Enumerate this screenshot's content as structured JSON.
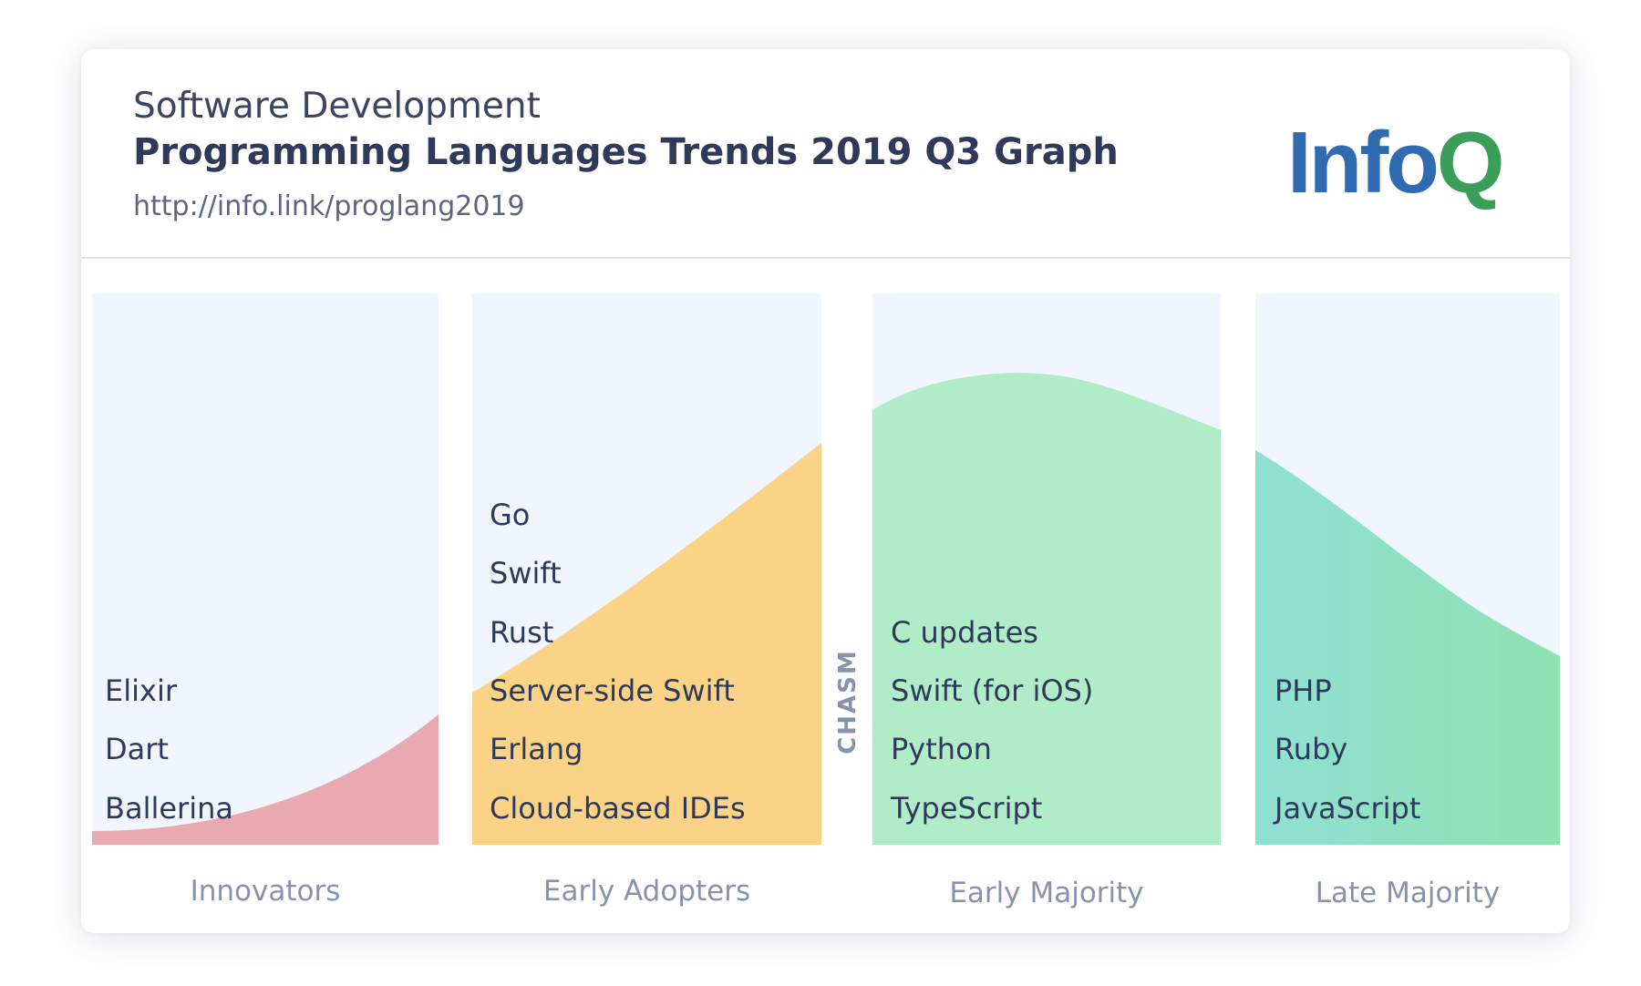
{
  "header": {
    "subtitle": "Software Development",
    "title": "Programming Languages Trends 2019 Q3 Graph",
    "url": "http://info.link/proglang2019",
    "logo": {
      "part1": "Info",
      "part2": "Q"
    }
  },
  "chasm_label": "CHASM",
  "stages": [
    {
      "name": "Innovators",
      "languages": [
        "Elixir",
        "Dart",
        "Ballerina"
      ]
    },
    {
      "name": "Early Adopters",
      "languages": [
        "Go",
        "Swift",
        "Rust",
        "Server-side Swift",
        "Erlang",
        "Cloud-based IDEs"
      ]
    },
    {
      "name": "Early Majority",
      "languages": [
        "C updates",
        "Swift (for iOS)",
        "Python",
        "TypeScript"
      ]
    },
    {
      "name": "Late Majority",
      "languages": [
        "PHP",
        "Ruby",
        "JavaScript"
      ]
    }
  ],
  "colors": {
    "panel_bg": "#f1f5fd",
    "innovators": "#e8a9b1",
    "early_adopters": "#fbd386",
    "early_majority": "#b0ecc8",
    "late_majority_start": "#8fe0d3",
    "late_majority_end": "#8fe2b2",
    "text_dark": "#2f3a5a",
    "text_muted": "#8892ad",
    "logo_blue": "#2f6bb0",
    "logo_green": "#3a9e59"
  }
}
